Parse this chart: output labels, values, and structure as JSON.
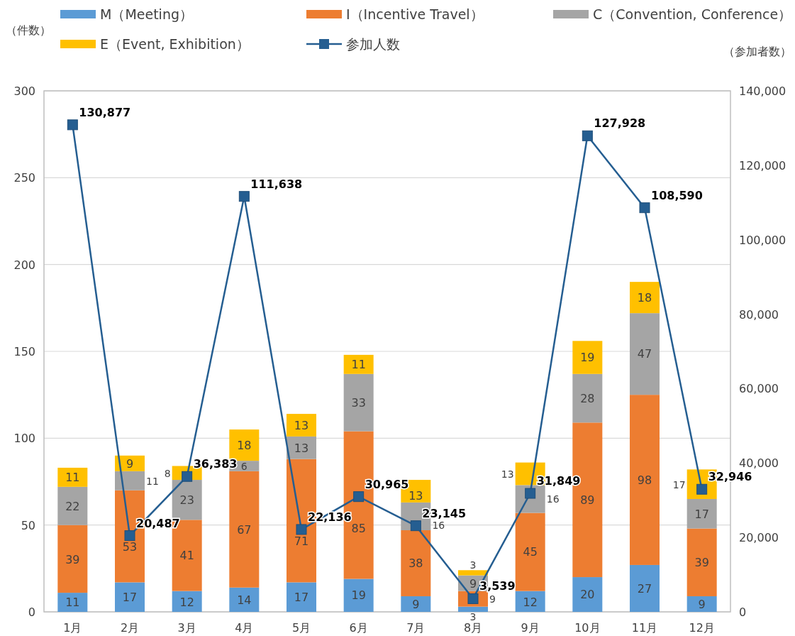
{
  "chart_data": {
    "type": "bar",
    "stacked": true,
    "legend": "top",
    "grid": "y",
    "data_labels": true,
    "ylabel": "（件数）",
    "y2label": "（参加者数）",
    "categories": [
      "1月",
      "2月",
      "3月",
      "4月",
      "5月",
      "6月",
      "7月",
      "8月",
      "9月",
      "10月",
      "11月",
      "12月"
    ],
    "ylim": [
      0,
      300
    ],
    "yticks": [
      0,
      50,
      100,
      150,
      200,
      250,
      300
    ],
    "y2lim": [
      0,
      140000
    ],
    "y2ticks": [
      0,
      {
        "value": 20000,
        "label": "20,000"
      },
      {
        "value": 40000,
        "label": "40,000"
      },
      {
        "value": 60000,
        "label": "60,000"
      },
      {
        "value": 80000,
        "label": "80,000"
      },
      {
        "value": 100000,
        "label": "100,000"
      },
      {
        "value": 120000,
        "label": "120,000"
      },
      {
        "value": 140000,
        "label": "140,000"
      }
    ],
    "series": [
      {
        "name": "M（Meeting）",
        "color": "#5b9bd5",
        "values": [
          11,
          17,
          12,
          14,
          17,
          19,
          9,
          3,
          12,
          20,
          27,
          9
        ]
      },
      {
        "name": "I（Incentive Travel）",
        "color": "#ed7d31",
        "values": [
          39,
          53,
          41,
          67,
          71,
          85,
          38,
          9,
          45,
          89,
          98,
          39
        ]
      },
      {
        "name": "C（Convention, Conference）",
        "color": "#a5a5a5",
        "values": [
          22,
          11,
          23,
          6,
          13,
          33,
          16,
          9,
          16,
          28,
          47,
          17
        ]
      },
      {
        "name": "E（Event, Exhibition）",
        "color": "#ffc000",
        "values": [
          11,
          9,
          8,
          18,
          13,
          11,
          13,
          3,
          13,
          19,
          18,
          17
        ]
      },
      {
        "name": "参加人数",
        "type": "line",
        "axis": "y2",
        "marker": "square",
        "color": "#255e91",
        "values": [
          130877,
          20487,
          36383,
          111638,
          22136,
          30965,
          23145,
          3539,
          31849,
          127928,
          108590,
          32946
        ],
        "value_labels": [
          "130,877",
          "20,487",
          "36,383",
          "111,638",
          "22,136",
          "30,965",
          "23,145",
          "3,539",
          "31,849",
          "127,928",
          "108,590",
          "32,946"
        ]
      }
    ]
  }
}
